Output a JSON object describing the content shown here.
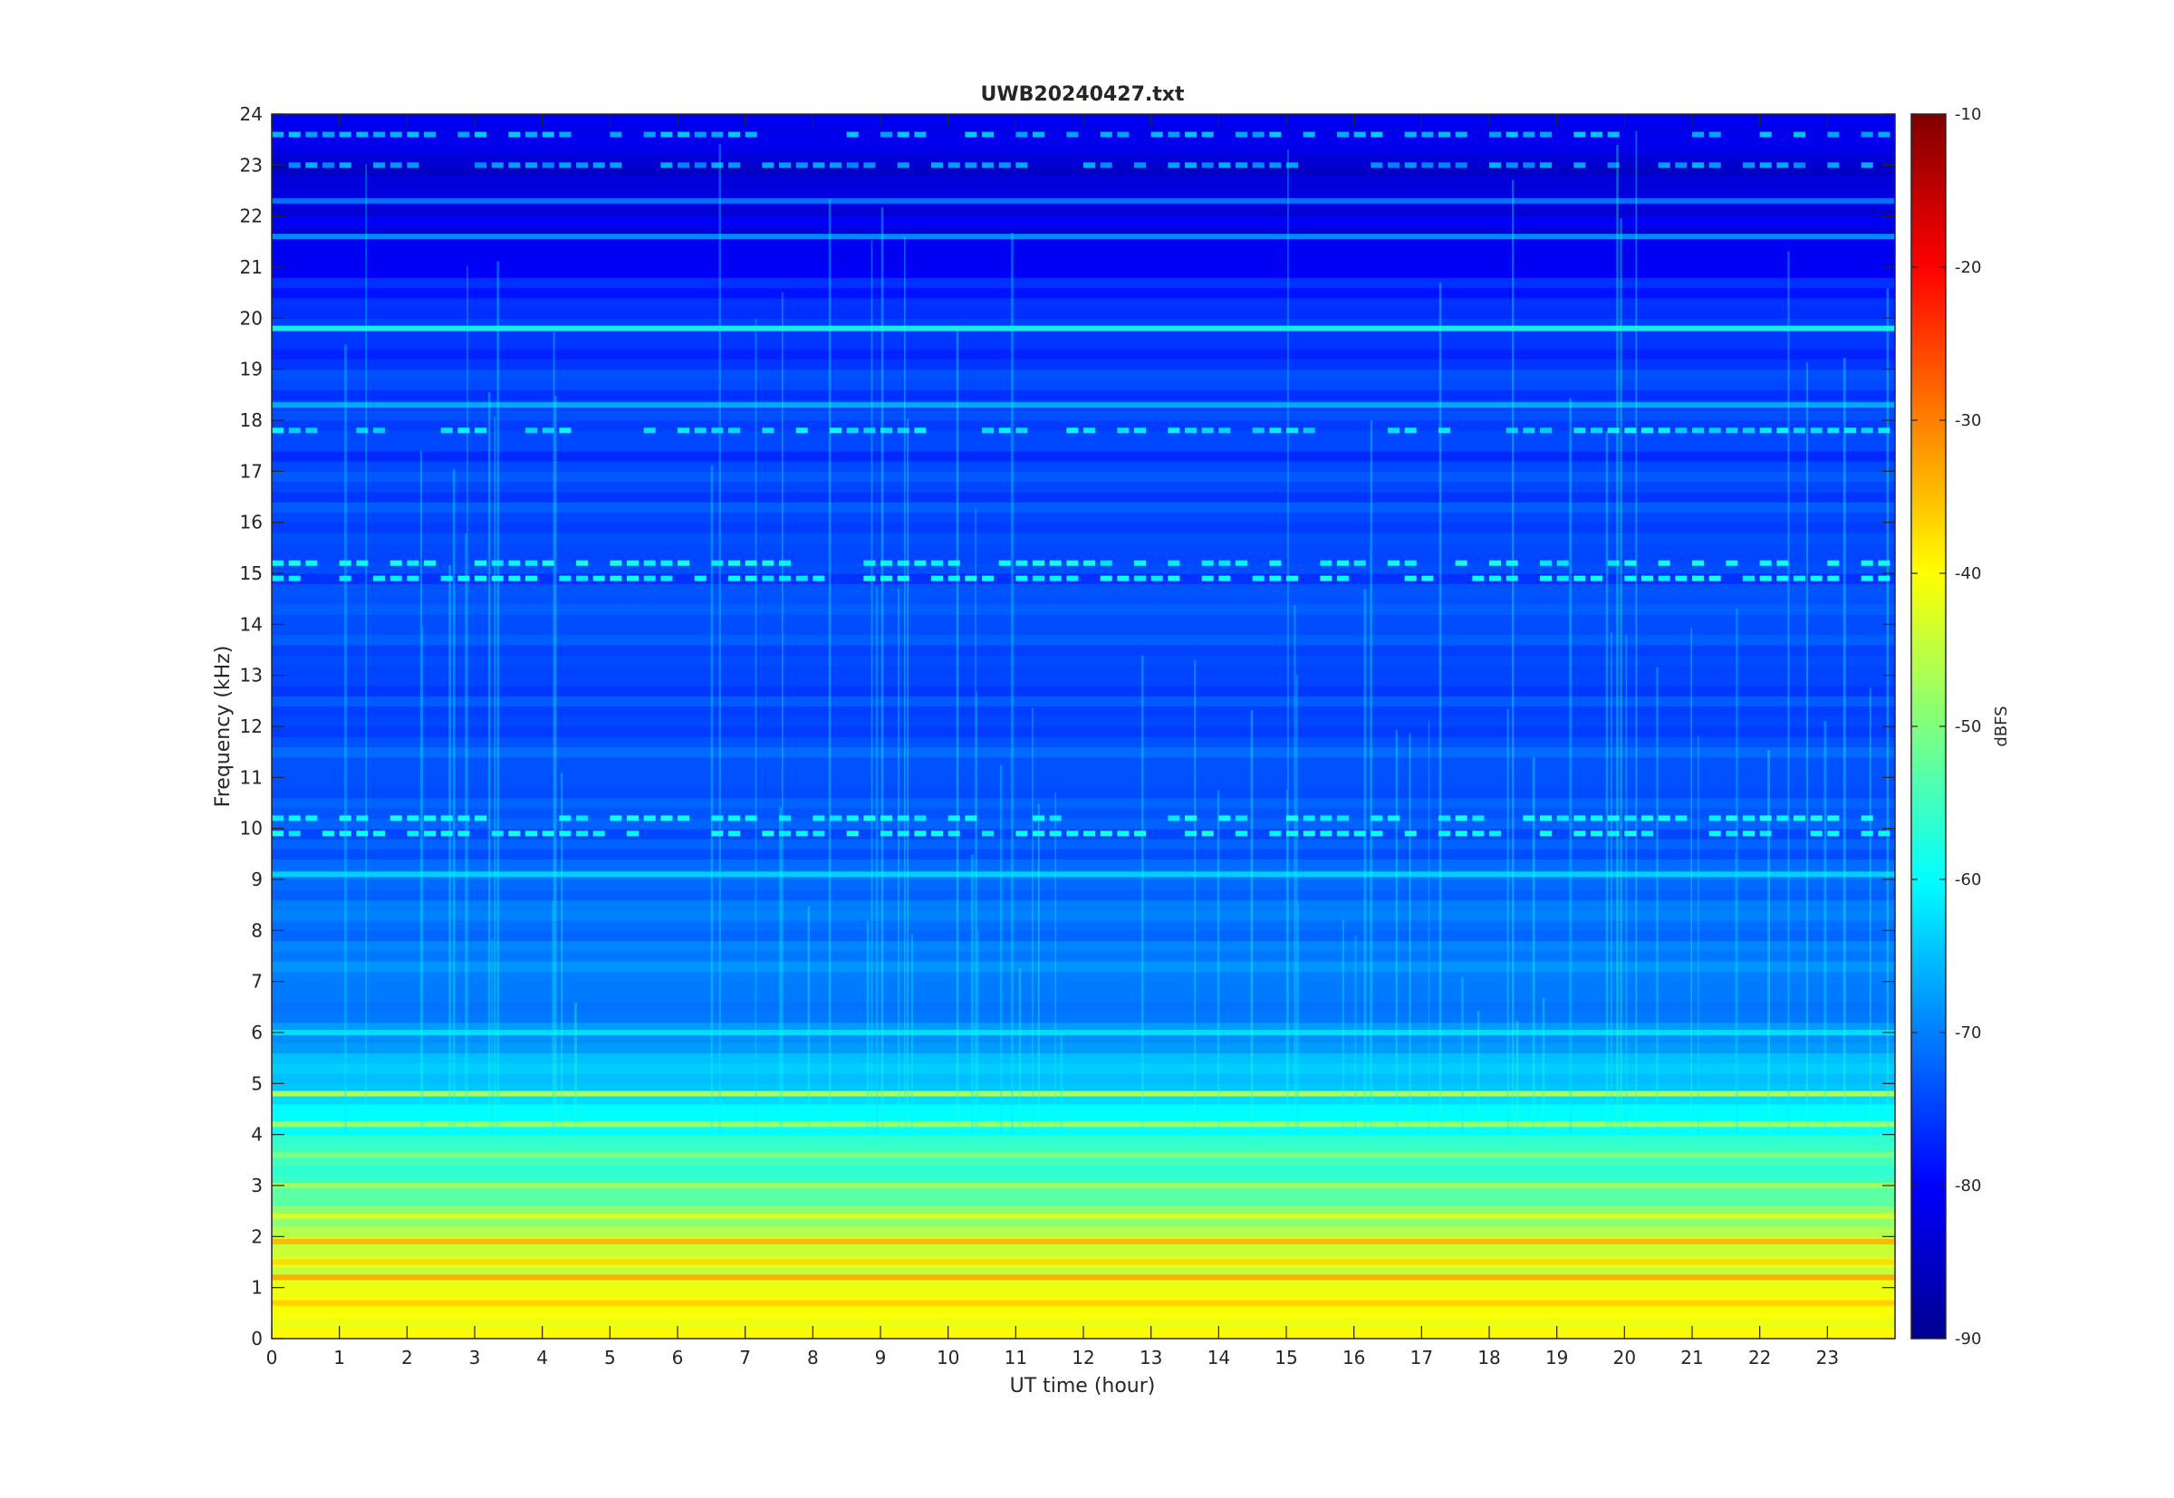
{
  "chart_data": {
    "type": "heatmap",
    "title": "UWB20240427.txt",
    "xlabel": "UT time (hour)",
    "ylabel": "Frequency (kHz)",
    "xlim": [
      0,
      24
    ],
    "ylim": [
      0,
      24
    ],
    "x_ticks": [
      "0",
      "1",
      "2",
      "3",
      "4",
      "5",
      "6",
      "7",
      "8",
      "9",
      "10",
      "11",
      "12",
      "13",
      "14",
      "15",
      "16",
      "17",
      "18",
      "19",
      "20",
      "21",
      "22",
      "23"
    ],
    "y_ticks": [
      "0",
      "1",
      "2",
      "3",
      "4",
      "5",
      "6",
      "7",
      "8",
      "9",
      "10",
      "11",
      "12",
      "13",
      "14",
      "15",
      "16",
      "17",
      "18",
      "19",
      "20",
      "21",
      "22",
      "23",
      "24"
    ],
    "colorbar": {
      "label": "dBFS",
      "range": [
        -90,
        -10
      ],
      "ticks": [
        "-90",
        "-80",
        "-70",
        "-60",
        "-50",
        "-40",
        "-30",
        "-20",
        "-10"
      ],
      "colormap": "jet"
    },
    "background_profile_dBFS": [
      {
        "freq_khz": 0.0,
        "level": -40
      },
      {
        "freq_khz": 1.0,
        "level": -42
      },
      {
        "freq_khz": 2.0,
        "level": -46
      },
      {
        "freq_khz": 3.0,
        "level": -54
      },
      {
        "freq_khz": 4.0,
        "level": -58
      },
      {
        "freq_khz": 5.0,
        "level": -64
      },
      {
        "freq_khz": 6.0,
        "level": -69
      },
      {
        "freq_khz": 8.0,
        "level": -71
      },
      {
        "freq_khz": 10.0,
        "level": -73
      },
      {
        "freq_khz": 14.0,
        "level": -74
      },
      {
        "freq_khz": 18.0,
        "level": -75
      },
      {
        "freq_khz": 20.5,
        "level": -77
      },
      {
        "freq_khz": 21.5,
        "level": -82
      },
      {
        "freq_khz": 24.0,
        "level": -83
      }
    ],
    "bands": [
      {
        "freq_khz": 0.7,
        "level": -36,
        "note": "persistent"
      },
      {
        "freq_khz": 1.2,
        "level": -33,
        "note": "persistent"
      },
      {
        "freq_khz": 1.5,
        "level": -37,
        "note": "persistent"
      },
      {
        "freq_khz": 1.9,
        "level": -34,
        "note": "persistent"
      },
      {
        "freq_khz": 2.4,
        "level": -43,
        "note": "persistent"
      },
      {
        "freq_khz": 3.0,
        "level": -47,
        "note": "persistent"
      },
      {
        "freq_khz": 3.6,
        "level": -50,
        "note": "persistent"
      },
      {
        "freq_khz": 4.2,
        "level": -46,
        "note": "persistent"
      },
      {
        "freq_khz": 4.8,
        "level": -45,
        "note": "persistent"
      },
      {
        "freq_khz": 6.0,
        "level": -62,
        "note": "persistent"
      },
      {
        "freq_khz": 9.1,
        "level": -63,
        "note": "persistent"
      },
      {
        "freq_khz": 9.9,
        "level": -60,
        "note": "intermittent"
      },
      {
        "freq_khz": 10.2,
        "level": -60,
        "note": "intermittent"
      },
      {
        "freq_khz": 14.9,
        "level": -60,
        "note": "intermittent"
      },
      {
        "freq_khz": 15.2,
        "level": -60,
        "note": "intermittent"
      },
      {
        "freq_khz": 17.8,
        "level": -62,
        "note": "intermittent"
      },
      {
        "freq_khz": 18.3,
        "level": -66,
        "note": "persistent"
      },
      {
        "freq_khz": 19.8,
        "level": -58,
        "note": "persistent"
      },
      {
        "freq_khz": 21.6,
        "level": -68,
        "note": "persistent"
      },
      {
        "freq_khz": 22.3,
        "level": -70,
        "note": "persistent"
      },
      {
        "freq_khz": 23.0,
        "level": -68,
        "note": "intermittent"
      },
      {
        "freq_khz": 23.6,
        "level": -66,
        "note": "intermittent"
      }
    ]
  }
}
